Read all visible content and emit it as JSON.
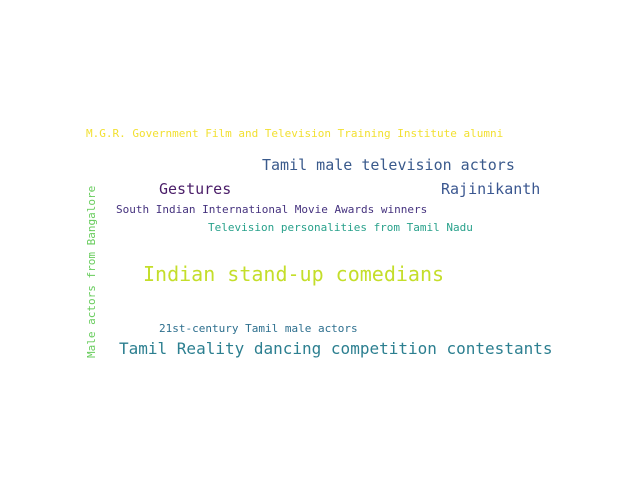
{
  "words": [
    {
      "id": "word-mgr-institute",
      "text": "M.G.R. Government Film and Television Training Institute alumni",
      "color": "#f2e032"
    },
    {
      "id": "word-tamil-tv-actors",
      "text": "Tamil male television actors",
      "color": "#3a5a8c"
    },
    {
      "id": "word-gestures",
      "text": "Gestures",
      "color": "#4a1d68"
    },
    {
      "id": "word-rajinikanth",
      "text": "Rajinikanth",
      "color": "#3b5790"
    },
    {
      "id": "word-siima-winners",
      "text": "South Indian International Movie Awards winners",
      "color": "#45327e"
    },
    {
      "id": "word-tv-personalities",
      "text": "Television personalities from Tamil Nadu",
      "color": "#28a18b"
    },
    {
      "id": "word-male-actors-bangalore",
      "text": "Male actors from Bangalore",
      "color": "#67cc5c"
    },
    {
      "id": "word-standup-comedians",
      "text": "Indian stand-up comedians",
      "color": "#c4de2a"
    },
    {
      "id": "word-21st-century-actors",
      "text": "21st-century Tamil male actors",
      "color": "#2d6f8e"
    },
    {
      "id": "word-reality-dancing",
      "text": "Tamil Reality dancing competition contestants",
      "color": "#2c7f90"
    }
  ]
}
